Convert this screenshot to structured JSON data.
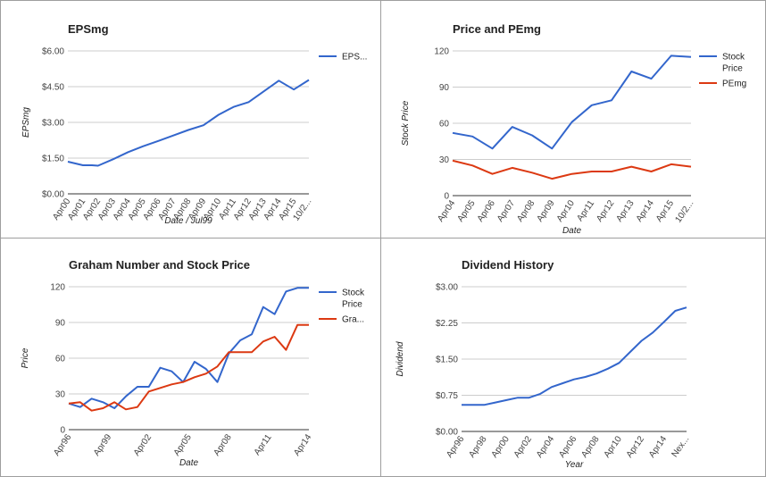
{
  "colors": {
    "blue": "#3366cc",
    "red": "#dc3912",
    "grid": "#cccccc",
    "axis": "#333333"
  },
  "chart_data": [
    {
      "type": "line",
      "title": "EPSmg",
      "xlabel": "Date / Jul99",
      "ylabel": "EPSmg",
      "categories": [
        "Apr00",
        "Apr01",
        "Apr02",
        "Apr03",
        "Apr04",
        "Apr05",
        "Apr06",
        "Apr07",
        "Apr08",
        "Apr09",
        "Apr10",
        "Apr11",
        "Apr12",
        "Apr13",
        "Apr14",
        "Apr15",
        "10/2..."
      ],
      "yticks": [
        "$0.00",
        "$1.50",
        "$3.00",
        "$4.50",
        "$6.00"
      ],
      "ylim": [
        0,
        6
      ],
      "series": [
        {
          "name": "EPS...",
          "color": "#3366cc",
          "x": [
            0,
            1,
            1.6,
            2,
            3,
            4,
            5,
            6,
            7,
            8,
            9,
            10,
            11,
            12,
            13,
            14,
            15,
            16
          ],
          "values": [
            1.35,
            1.2,
            1.2,
            1.18,
            1.45,
            1.75,
            2.0,
            2.22,
            2.45,
            2.68,
            2.88,
            3.32,
            3.65,
            3.85,
            4.3,
            4.75,
            4.38,
            4.78
          ]
        }
      ],
      "legend": "right"
    },
    {
      "type": "line",
      "title": "Price and PEmg",
      "xlabel": "Date",
      "ylabel": "Stock Price",
      "categories": [
        "Apr04",
        "Apr05",
        "Apr06",
        "Apr07",
        "Apr08",
        "Apr09",
        "Apr10",
        "Apr11",
        "Apr12",
        "Apr13",
        "Apr14",
        "Apr15",
        "10/2..."
      ],
      "yticks": [
        "0",
        "30",
        "60",
        "90",
        "120"
      ],
      "ylim": [
        0,
        120
      ],
      "series": [
        {
          "name": "Stock Price",
          "color": "#3366cc",
          "values": [
            52,
            49,
            39,
            57,
            50,
            39,
            61,
            75,
            79,
            103,
            97,
            116,
            115
          ]
        },
        {
          "name": "PEmg",
          "color": "#dc3912",
          "values": [
            29,
            25,
            18,
            23,
            19,
            14,
            18,
            20,
            20,
            24,
            20,
            26,
            24
          ]
        }
      ],
      "legend": "right"
    },
    {
      "type": "line",
      "title": "Graham Number and Stock Price",
      "xlabel": "Date",
      "ylabel": "Price",
      "categories": [
        "Apr96",
        "Apr99",
        "Apr02",
        "Apr05",
        "Apr08",
        "Apr11",
        "Apr14"
      ],
      "yticks": [
        "0",
        "30",
        "60",
        "90",
        "120"
      ],
      "ylim": [
        0,
        120
      ],
      "xrange": [
        0,
        21
      ],
      "series": [
        {
          "name": "Stock Price",
          "color": "#3366cc",
          "x": [
            0,
            1,
            2,
            3,
            4,
            5,
            6,
            7,
            8,
            9,
            10,
            11,
            12,
            13,
            14,
            15,
            16,
            17,
            18,
            19,
            20,
            21
          ],
          "values": [
            22,
            19,
            26,
            23,
            18,
            28,
            36,
            36,
            52,
            49,
            40,
            57,
            51,
            40,
            64,
            75,
            80,
            103,
            97,
            116,
            119,
            119
          ]
        },
        {
          "name": "Gra...",
          "color": "#dc3912",
          "x": [
            0,
            1,
            2,
            3,
            4,
            5,
            6,
            7,
            8,
            9,
            10,
            11,
            12,
            13,
            14,
            15,
            16,
            17,
            18,
            19,
            20,
            21
          ],
          "values": [
            22,
            23,
            16,
            18,
            23,
            17,
            19,
            32,
            35,
            38,
            40,
            44,
            47,
            53,
            65,
            65,
            65,
            74,
            78,
            67,
            88,
            88
          ]
        }
      ],
      "legend": "right"
    },
    {
      "type": "line",
      "title": "Dividend History",
      "xlabel": "Year",
      "ylabel": "Dividend",
      "categories": [
        "Apr96",
        "Apr98",
        "Apr00",
        "Apr02",
        "Apr04",
        "Apr06",
        "Apr08",
        "Apr10",
        "Apr12",
        "Apr14",
        "Nex..."
      ],
      "yticks": [
        "$0.00",
        "$0.75",
        "$1.50",
        "$2.25",
        "$3.00"
      ],
      "ylim": [
        0,
        3
      ],
      "series": [
        {
          "name": "Dividend",
          "color": "#3366cc",
          "x": [
            0,
            0.5,
            1,
            1.5,
            2,
            2.5,
            3,
            3.5,
            4,
            4.5,
            5,
            5.5,
            6,
            6.5,
            7,
            7.5,
            8,
            8.5,
            9,
            9.5,
            10
          ],
          "values": [
            0.55,
            0.55,
            0.55,
            0.6,
            0.65,
            0.7,
            0.7,
            0.78,
            0.92,
            1.0,
            1.08,
            1.13,
            1.2,
            1.3,
            1.42,
            1.65,
            1.88,
            2.05,
            2.27,
            2.5,
            2.57
          ]
        }
      ],
      "legend": "none"
    }
  ]
}
